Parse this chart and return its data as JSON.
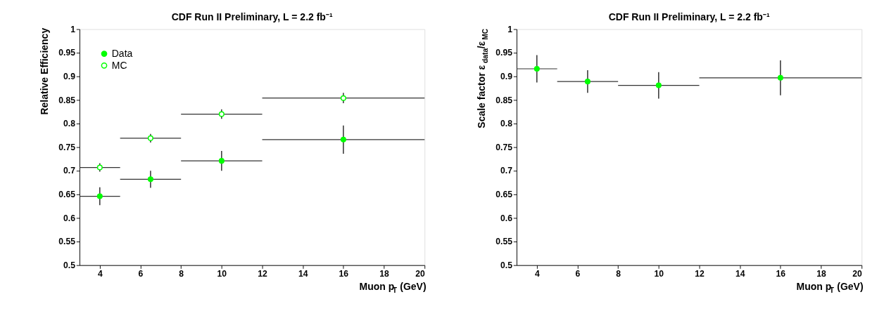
{
  "chart_data": [
    {
      "type": "scatter",
      "title": "CDF Run II Preliminary, L = 2.2 fb⁻¹",
      "xlabel": "Muon p$_{T}$ (GeV)",
      "ylabel": "Relative Efficiency",
      "x": [
        4,
        6.5,
        10,
        16
      ],
      "series": [
        {
          "name": "Data",
          "color": "#00ff00",
          "values": [
            0.646,
            0.682,
            0.721,
            0.766
          ],
          "errors": [
            0.019,
            0.018,
            0.021,
            0.03
          ],
          "xerrors": [
            1,
            1.5,
            2,
            4
          ]
        },
        {
          "name": "MC",
          "color": "#00ff00",
          "values": [
            0.707,
            0.769,
            0.82,
            0.854
          ],
          "errors": [
            0.009,
            0.009,
            0.01,
            0.011
          ],
          "xerrors": [
            1,
            1.5,
            2,
            4
          ]
        }
      ],
      "xlim": [
        3,
        20
      ],
      "xticks": [
        4,
        6,
        8,
        10,
        12,
        14,
        16,
        18,
        20
      ],
      "ylim": [
        0.5,
        1
      ],
      "yticks": [
        0.5,
        0.55,
        0.6,
        0.65,
        0.7,
        0.75,
        0.8,
        0.85,
        0.9,
        0.95,
        1
      ],
      "marker": "circle",
      "grid": false,
      "legend": "top left"
    },
    {
      "type": "scatter",
      "title": "CDF Run II Preliminary, L = 2.2 fb⁻¹",
      "xlabel": "Muon p$_{T}$ (GeV)",
      "ylabel": "Scale factor ε$_{data}$/ε$_{MC}$",
      "x": [
        4,
        6.5,
        10,
        16
      ],
      "series": [
        {
          "color": "#00ff00",
          "values": [
            0.916,
            0.889,
            0.881,
            0.897
          ],
          "errors": [
            0.029,
            0.024,
            0.028,
            0.037
          ],
          "xerrors": [
            1,
            1.5,
            2,
            4
          ]
        }
      ],
      "xlim": [
        3,
        20
      ],
      "xticks": [
        4,
        6,
        8,
        10,
        12,
        14,
        16,
        18,
        20
      ],
      "ylim": [
        0.5,
        1
      ],
      "yticks": [
        0.5,
        0.55,
        0.6,
        0.65,
        0.7,
        0.75,
        0.8,
        0.85,
        0.9,
        0.95,
        1
      ],
      "marker": "circle",
      "grid": false,
      "legend": false
    }
  ]
}
